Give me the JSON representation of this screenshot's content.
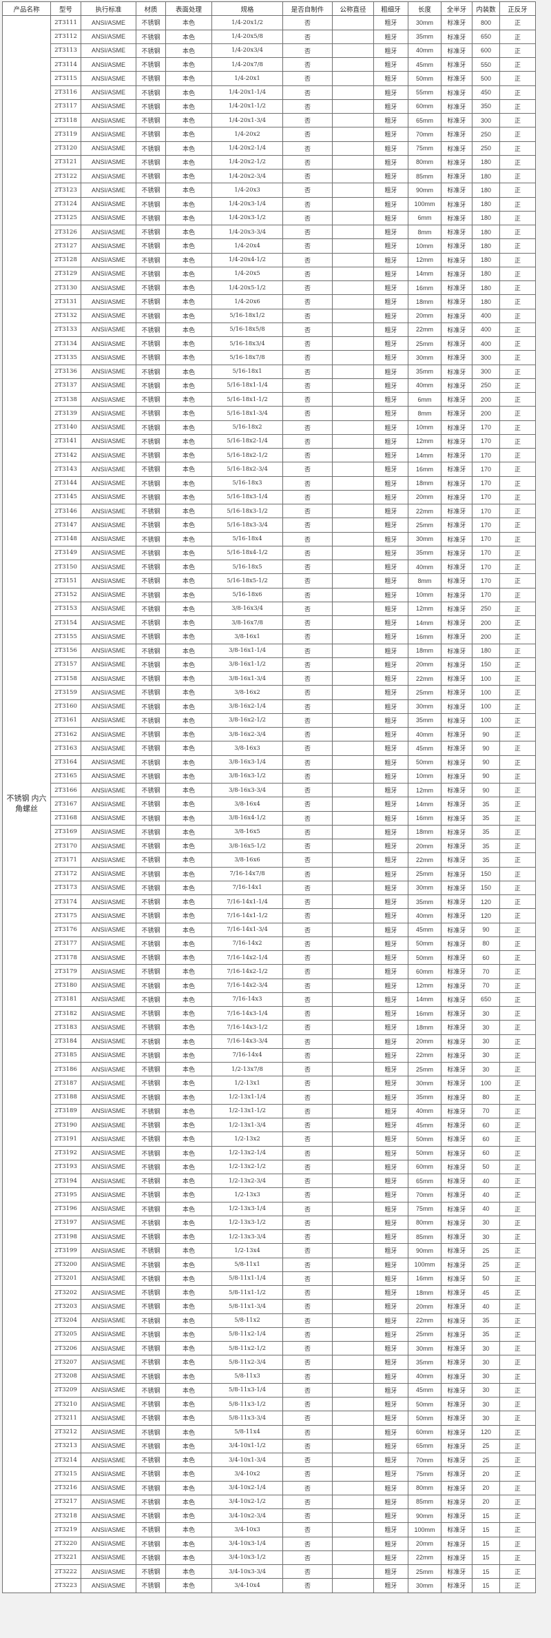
{
  "table": {
    "product_name": "不锈钢 内六角螺丝",
    "headers": [
      "产品名称",
      "型号",
      "执行标准",
      "材质",
      "表面处理",
      "规格",
      "是否自制件",
      "公称直径",
      "粗细牙",
      "长度",
      "全半牙",
      "内装数",
      "正反牙"
    ],
    "row_constants": {
      "standard": "ANSI/ASME",
      "material": "不锈钢",
      "finish": "本色",
      "self_made": "否",
      "nominal_diameter": "",
      "coarse_fine": "粗牙",
      "full_half": "标准牙",
      "direction": "正"
    },
    "rows": [
      [
        "2T3111",
        "1/4-20x1/2",
        "30mm",
        "800"
      ],
      [
        "2T3112",
        "1/4-20x5/8",
        "35mm",
        "650"
      ],
      [
        "2T3113",
        "1/4-20x3/4",
        "40mm",
        "600"
      ],
      [
        "2T3114",
        "1/4-20x7/8",
        "45mm",
        "550"
      ],
      [
        "2T3115",
        "1/4-20x1",
        "50mm",
        "500"
      ],
      [
        "2T3116",
        "1/4-20x1-1/4",
        "55mm",
        "450"
      ],
      [
        "2T3117",
        "1/4-20x1-1/2",
        "60mm",
        "350"
      ],
      [
        "2T3118",
        "1/4-20x1-3/4",
        "65mm",
        "300"
      ],
      [
        "2T3119",
        "1/4-20x2",
        "70mm",
        "250"
      ],
      [
        "2T3120",
        "1/4-20x2-1/4",
        "75mm",
        "250"
      ],
      [
        "2T3121",
        "1/4-20x2-1/2",
        "80mm",
        "180"
      ],
      [
        "2T3122",
        "1/4-20x2-3/4",
        "85mm",
        "180"
      ],
      [
        "2T3123",
        "1/4-20x3",
        "90mm",
        "180"
      ],
      [
        "2T3124",
        "1/4-20x3-1/4",
        "100mm",
        "180"
      ],
      [
        "2T3125",
        "1/4-20x3-1/2",
        "6mm",
        "180"
      ],
      [
        "2T3126",
        "1/4-20x3-3/4",
        "8mm",
        "180"
      ],
      [
        "2T3127",
        "1/4-20x4",
        "10mm",
        "180"
      ],
      [
        "2T3128",
        "1/4-20x4-1/2",
        "12mm",
        "180"
      ],
      [
        "2T3129",
        "1/4-20x5",
        "14mm",
        "180"
      ],
      [
        "2T3130",
        "1/4-20x5-1/2",
        "16mm",
        "180"
      ],
      [
        "2T3131",
        "1/4-20x6",
        "18mm",
        "180"
      ],
      [
        "2T3132",
        "5/16-18x1/2",
        "20mm",
        "400"
      ],
      [
        "2T3133",
        "5/16-18x5/8",
        "22mm",
        "400"
      ],
      [
        "2T3134",
        "5/16-18x3/4",
        "25mm",
        "400"
      ],
      [
        "2T3135",
        "5/16-18x7/8",
        "30mm",
        "300"
      ],
      [
        "2T3136",
        "5/16-18x1",
        "35mm",
        "300"
      ],
      [
        "2T3137",
        "5/16-18x1-1/4",
        "40mm",
        "250"
      ],
      [
        "2T3138",
        "5/16-18x1-1/2",
        "6mm",
        "200"
      ],
      [
        "2T3139",
        "5/16-18x1-3/4",
        "8mm",
        "200"
      ],
      [
        "2T3140",
        "5/16-18x2",
        "10mm",
        "170"
      ],
      [
        "2T3141",
        "5/16-18x2-1/4",
        "12mm",
        "170"
      ],
      [
        "2T3142",
        "5/16-18x2-1/2",
        "14mm",
        "170"
      ],
      [
        "2T3143",
        "5/16-18x2-3/4",
        "16mm",
        "170"
      ],
      [
        "2T3144",
        "5/16-18x3",
        "18mm",
        "170"
      ],
      [
        "2T3145",
        "5/16-18x3-1/4",
        "20mm",
        "170"
      ],
      [
        "2T3146",
        "5/16-18x3-1/2",
        "22mm",
        "170"
      ],
      [
        "2T3147",
        "5/16-18x3-3/4",
        "25mm",
        "170"
      ],
      [
        "2T3148",
        "5/16-18x4",
        "30mm",
        "170"
      ],
      [
        "2T3149",
        "5/16-18x4-1/2",
        "35mm",
        "170"
      ],
      [
        "2T3150",
        "5/16-18x5",
        "40mm",
        "170"
      ],
      [
        "2T3151",
        "5/16-18x5-1/2",
        "8mm",
        "170"
      ],
      [
        "2T3152",
        "5/16-18x6",
        "10mm",
        "170"
      ],
      [
        "2T3153",
        "3/8-16x3/4",
        "12mm",
        "250"
      ],
      [
        "2T3154",
        "3/8-16x7/8",
        "14mm",
        "200"
      ],
      [
        "2T3155",
        "3/8-16x1",
        "16mm",
        "200"
      ],
      [
        "2T3156",
        "3/8-16x1-1/4",
        "18mm",
        "180"
      ],
      [
        "2T3157",
        "3/8-16x1-1/2",
        "20mm",
        "150"
      ],
      [
        "2T3158",
        "3/8-16x1-3/4",
        "22mm",
        "100"
      ],
      [
        "2T3159",
        "3/8-16x2",
        "25mm",
        "100"
      ],
      [
        "2T3160",
        "3/8-16x2-1/4",
        "30mm",
        "100"
      ],
      [
        "2T3161",
        "3/8-16x2-1/2",
        "35mm",
        "100"
      ],
      [
        "2T3162",
        "3/8-16x2-3/4",
        "40mm",
        "90"
      ],
      [
        "2T3163",
        "3/8-16x3",
        "45mm",
        "90"
      ],
      [
        "2T3164",
        "3/8-16x3-1/4",
        "50mm",
        "90"
      ],
      [
        "2T3165",
        "3/8-16x3-1/2",
        "10mm",
        "90"
      ],
      [
        "2T3166",
        "3/8-16x3-3/4",
        "12mm",
        "90"
      ],
      [
        "2T3167",
        "3/8-16x4",
        "14mm",
        "35"
      ],
      [
        "2T3168",
        "3/8-16x4-1/2",
        "16mm",
        "35"
      ],
      [
        "2T3169",
        "3/8-16x5",
        "18mm",
        "35"
      ],
      [
        "2T3170",
        "3/8-16x5-1/2",
        "20mm",
        "35"
      ],
      [
        "2T3171",
        "3/8-16x6",
        "22mm",
        "35"
      ],
      [
        "2T3172",
        "7/16-14x7/8",
        "25mm",
        "150"
      ],
      [
        "2T3173",
        "7/16-14x1",
        "30mm",
        "150"
      ],
      [
        "2T3174",
        "7/16-14x1-1/4",
        "35mm",
        "120"
      ],
      [
        "2T3175",
        "7/16-14x1-1/2",
        "40mm",
        "120"
      ],
      [
        "2T3176",
        "7/16-14x1-3/4",
        "45mm",
        "90"
      ],
      [
        "2T3177",
        "7/16-14x2",
        "50mm",
        "80"
      ],
      [
        "2T3178",
        "7/16-14x2-1/4",
        "50mm",
        "60"
      ],
      [
        "2T3179",
        "7/16-14x2-1/2",
        "60mm",
        "70"
      ],
      [
        "2T3180",
        "7/16-14x2-3/4",
        "12mm",
        "70"
      ],
      [
        "2T3181",
        "7/16-14x3",
        "14mm",
        "650"
      ],
      [
        "2T3182",
        "7/16-14x3-1/4",
        "16mm",
        "30"
      ],
      [
        "2T3183",
        "7/16-14x3-1/2",
        "18mm",
        "30"
      ],
      [
        "2T3184",
        "7/16-14x3-3/4",
        "20mm",
        "30"
      ],
      [
        "2T3185",
        "7/16-14x4",
        "22mm",
        "30"
      ],
      [
        "2T3186",
        "1/2-13x7/8",
        "25mm",
        "30"
      ],
      [
        "2T3187",
        "1/2-13x1",
        "30mm",
        "100"
      ],
      [
        "2T3188",
        "1/2-13x1-1/4",
        "35mm",
        "80"
      ],
      [
        "2T3189",
        "1/2-13x1-1/2",
        "40mm",
        "70"
      ],
      [
        "2T3190",
        "1/2-13x1-3/4",
        "45mm",
        "60"
      ],
      [
        "2T3191",
        "1/2-13x2",
        "50mm",
        "60"
      ],
      [
        "2T3192",
        "1/2-13x2-1/4",
        "50mm",
        "60"
      ],
      [
        "2T3193",
        "1/2-13x2-1/2",
        "60mm",
        "50"
      ],
      [
        "2T3194",
        "1/2-13x2-3/4",
        "65mm",
        "40"
      ],
      [
        "2T3195",
        "1/2-13x3",
        "70mm",
        "40"
      ],
      [
        "2T3196",
        "1/2-13x3-1/4",
        "75mm",
        "40"
      ],
      [
        "2T3197",
        "1/2-13x3-1/2",
        "80mm",
        "30"
      ],
      [
        "2T3198",
        "1/2-13x3-3/4",
        "85mm",
        "30"
      ],
      [
        "2T3199",
        "1/2-13x4",
        "90mm",
        "25"
      ],
      [
        "2T3200",
        "5/8-11x1",
        "100mm",
        "25"
      ],
      [
        "2T3201",
        "5/8-11x1-1/4",
        "16mm",
        "50"
      ],
      [
        "2T3202",
        "5/8-11x1-1/2",
        "18mm",
        "45"
      ],
      [
        "2T3203",
        "5/8-11x1-3/4",
        "20mm",
        "40"
      ],
      [
        "2T3204",
        "5/8-11x2",
        "22mm",
        "35"
      ],
      [
        "2T3205",
        "5/8-11x2-1/4",
        "25mm",
        "35"
      ],
      [
        "2T3206",
        "5/8-11x2-1/2",
        "30mm",
        "30"
      ],
      [
        "2T3207",
        "5/8-11x2-3/4",
        "35mm",
        "30"
      ],
      [
        "2T3208",
        "5/8-11x3",
        "40mm",
        "30"
      ],
      [
        "2T3209",
        "5/8-11x3-1/4",
        "45mm",
        "30"
      ],
      [
        "2T3210",
        "5/8-11x3-1/2",
        "50mm",
        "30"
      ],
      [
        "2T3211",
        "5/8-11x3-3/4",
        "50mm",
        "30"
      ],
      [
        "2T3212",
        "5/8-11x4",
        "60mm",
        "120"
      ],
      [
        "2T3213",
        "3/4-10x1-1/2",
        "65mm",
        "25"
      ],
      [
        "2T3214",
        "3/4-10x1-3/4",
        "70mm",
        "25"
      ],
      [
        "2T3215",
        "3/4-10x2",
        "75mm",
        "20"
      ],
      [
        "2T3216",
        "3/4-10x2-1/4",
        "80mm",
        "20"
      ],
      [
        "2T3217",
        "3/4-10x2-1/2",
        "85mm",
        "20"
      ],
      [
        "2T3218",
        "3/4-10x2-3/4",
        "90mm",
        "15"
      ],
      [
        "2T3219",
        "3/4-10x3",
        "100mm",
        "15"
      ],
      [
        "2T3220",
        "3/4-10x3-1/4",
        "20mm",
        "15"
      ],
      [
        "2T3221",
        "3/4-10x3-1/2",
        "22mm",
        "15"
      ],
      [
        "2T3222",
        "3/4-10x3-3/4",
        "25mm",
        "15"
      ],
      [
        "2T3223",
        "3/4-10x4",
        "30mm",
        "15"
      ]
    ]
  }
}
